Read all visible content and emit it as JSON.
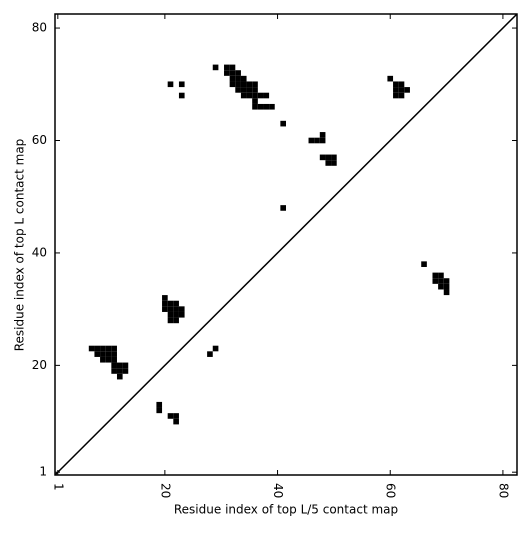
{
  "chart_data": {
    "type": "scatter",
    "marker": "square",
    "color": "#000000",
    "diagonal": true,
    "xlabel": "Residue index of top L/5 contact map",
    "ylabel": "Residue index of top L contact map",
    "xlim": [
      0.5,
      82.5
    ],
    "ylim": [
      0.5,
      82.5
    ],
    "xticks": [
      1,
      20,
      40,
      60,
      80
    ],
    "yticks": [
      1,
      20,
      40,
      60,
      80
    ],
    "x": [
      21,
      23,
      23,
      29,
      31,
      32,
      31,
      32,
      33,
      32,
      33,
      34,
      32,
      33,
      34,
      35,
      36,
      33,
      34,
      35,
      36,
      34,
      35,
      36,
      37,
      38,
      36,
      36,
      37,
      38,
      39,
      41,
      46,
      47,
      48,
      48,
      48,
      49,
      50,
      49,
      50,
      41,
      60,
      61,
      62,
      61,
      62,
      63,
      61,
      62,
      66,
      68,
      69,
      68,
      69,
      70,
      69,
      70,
      70,
      20,
      20,
      21,
      22,
      20,
      21,
      22,
      23,
      21,
      22,
      23,
      21,
      22,
      29,
      28,
      7,
      8,
      9,
      10,
      11,
      8,
      9,
      10,
      11,
      9,
      10,
      11,
      11,
      12,
      13,
      11,
      12,
      13,
      12,
      19,
      19,
      21,
      22,
      22
    ],
    "values": [
      70,
      70,
      68,
      73,
      73,
      73,
      72,
      72,
      72,
      71,
      71,
      71,
      70,
      70,
      70,
      70,
      70,
      69,
      69,
      69,
      69,
      68,
      68,
      68,
      68,
      68,
      67,
      66,
      66,
      66,
      66,
      63,
      60,
      60,
      60,
      61,
      57,
      57,
      57,
      56,
      56,
      48,
      71,
      70,
      70,
      69,
      69,
      69,
      68,
      68,
      38,
      36,
      36,
      35,
      35,
      35,
      34,
      34,
      33,
      32,
      31,
      31,
      31,
      30,
      30,
      30,
      30,
      29,
      29,
      29,
      28,
      28,
      23,
      22,
      23,
      23,
      23,
      23,
      23,
      22,
      22,
      22,
      22,
      21,
      21,
      21,
      20,
      20,
      20,
      19,
      19,
      19,
      18,
      13,
      12,
      11,
      11,
      10
    ]
  }
}
